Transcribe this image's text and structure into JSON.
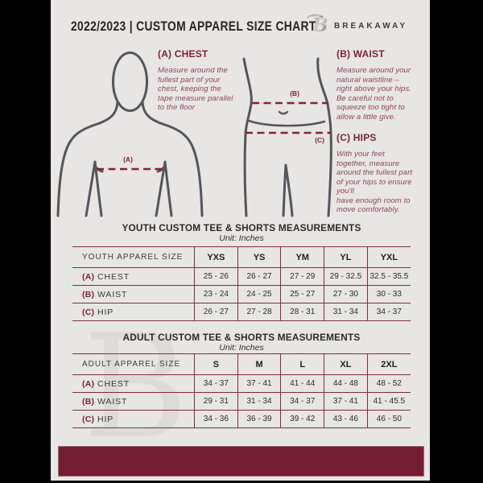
{
  "header": {
    "title": "2022/2023  |  CUSTOM APPAREL SIZE CHART",
    "brand": "BREAKAWAY",
    "logo_icon": "breakaway-b-monogram"
  },
  "diagram": {
    "chest_label": "(A)",
    "waist_label": "(B)",
    "hips_label": "(C)"
  },
  "guide": {
    "chest": {
      "heading": "(A) CHEST",
      "body": "Measure around the\nfullest part of your\nchest, keeping the\ntape measure parallel\nto the floor"
    },
    "waist": {
      "heading": "(B) WAIST",
      "body": "Measure around your\nnatural waistline –\nright above your hips.\nBe careful not to\nsqueeze too tight to\nallow a little give."
    },
    "hips": {
      "heading": "(C) HIPS",
      "body": "With your feet\ntogether, measure\naround the fullest part\nof your hips to ensure\nyou'll\nhave enough room to\nmove comfortably."
    }
  },
  "youth": {
    "title": "YOUTH CUSTOM TEE & SHORTS MEASUREMENTS",
    "unit": "Unit: Inches",
    "table": {
      "header": [
        "YOUTH APPAREL SIZE",
        "YXS",
        "YS",
        "YM",
        "YL",
        "YXL"
      ],
      "rows": [
        {
          "prefix": "(A)",
          "label": "CHEST",
          "values": [
            "25 - 26",
            "26 - 27",
            "27 - 29",
            "29 - 32.5",
            "32.5 - 35.5"
          ]
        },
        {
          "prefix": "(B)",
          "label": "WAIST",
          "values": [
            "23 - 24",
            "24 - 25",
            "25 - 27",
            "27 - 30",
            "30 - 33"
          ]
        },
        {
          "prefix": "(C)",
          "label": "HIP",
          "values": [
            "26 - 27",
            "27 - 28",
            "28 - 31",
            "31 - 34",
            "34 - 37"
          ]
        }
      ]
    }
  },
  "adult": {
    "title": "ADULT CUSTOM TEE & SHORTS MEASUREMENTS",
    "unit": "Unit: Inches",
    "table": {
      "header": [
        "ADULT APPAREL SIZE",
        "S",
        "M",
        "L",
        "XL",
        "2XL"
      ],
      "rows": [
        {
          "prefix": "(A)",
          "label": "CHEST",
          "values": [
            "34 - 37",
            "37 - 41",
            "41 - 44",
            "44 - 48",
            "48 - 52"
          ]
        },
        {
          "prefix": "(B)",
          "label": "WAIST",
          "values": [
            "29 - 31",
            "31 - 34",
            "34 - 37",
            "37 - 41",
            "41 - 45.5"
          ]
        },
        {
          "prefix": "(C)",
          "label": "HIP",
          "values": [
            "34 - 36",
            "36 - 39",
            "39 - 42",
            "43 - 46",
            "46 - 50"
          ]
        }
      ]
    }
  },
  "watermark": "B",
  "colors": {
    "maroon": "#721d33",
    "accent_maroon": "#7c1f3c",
    "page_background": "#e7e6e4",
    "side_bars": "#000000",
    "figure_outline": "#55565a"
  }
}
